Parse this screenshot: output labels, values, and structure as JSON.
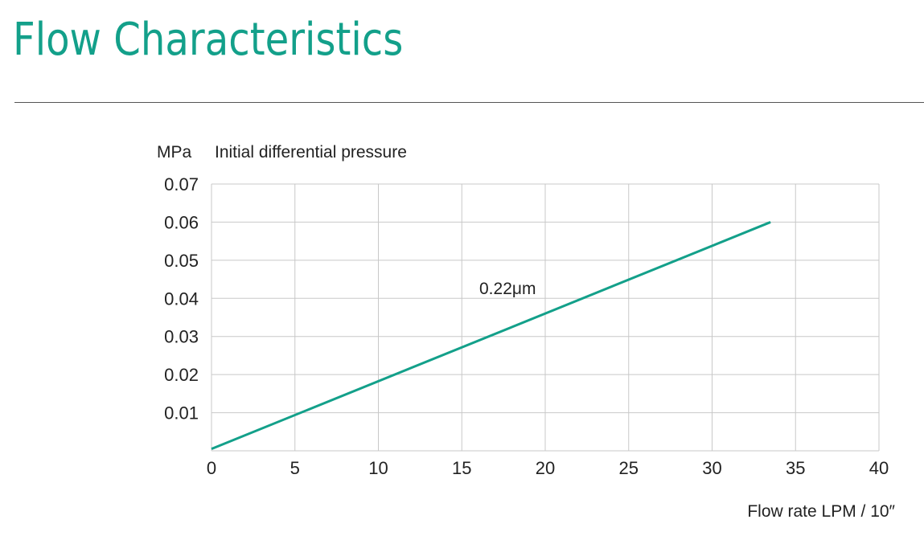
{
  "page": {
    "title": "Flow Characteristics"
  },
  "colors": {
    "accent": "#13a08a",
    "grid": "#c8c8c8",
    "divider": "#555555"
  },
  "chart_data": {
    "type": "line",
    "ylabel_unit": "MPa",
    "ylabel": "Initial differential pressure",
    "xlabel": "Flow rate LPM / 10″",
    "xlim": [
      0,
      40
    ],
    "ylim": [
      0,
      0.07
    ],
    "x_ticks": [
      "0",
      "5",
      "10",
      "15",
      "20",
      "25",
      "30",
      "35",
      "40"
    ],
    "y_ticks": [
      "0.07",
      "0.06",
      "0.05",
      "0.04",
      "0.03",
      "0.02",
      "0.01"
    ],
    "grid": true,
    "series": [
      {
        "name": "0.22μm",
        "color": "#13a08a",
        "x": [
          0,
          33.5
        ],
        "y": [
          0.0005,
          0.06
        ]
      }
    ]
  }
}
